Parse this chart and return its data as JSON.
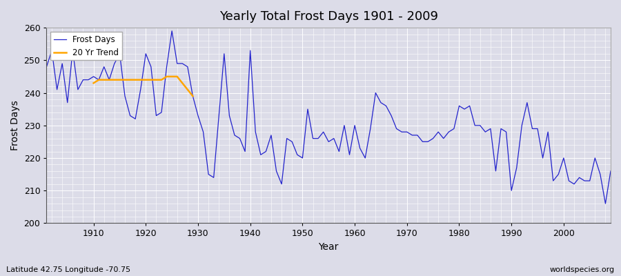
{
  "title": "Yearly Total Frost Days 1901 - 2009",
  "xlabel": "Year",
  "ylabel": "Frost Days",
  "footnote_left": "Latitude 42.75 Longitude -70.75",
  "footnote_right": "worldspecies.org",
  "ylim": [
    200,
    260
  ],
  "xlim": [
    1901,
    2009
  ],
  "background_color": "#dcdce8",
  "grid_color": "#ffffff",
  "line_color": "#2222cc",
  "trend_color": "#ffa500",
  "years": [
    1901,
    1902,
    1903,
    1904,
    1905,
    1906,
    1907,
    1908,
    1909,
    1910,
    1911,
    1912,
    1913,
    1914,
    1915,
    1916,
    1917,
    1918,
    1919,
    1920,
    1921,
    1922,
    1923,
    1924,
    1925,
    1926,
    1927,
    1928,
    1929,
    1930,
    1931,
    1932,
    1933,
    1934,
    1935,
    1936,
    1937,
    1938,
    1939,
    1940,
    1941,
    1942,
    1943,
    1944,
    1945,
    1946,
    1947,
    1948,
    1949,
    1950,
    1951,
    1952,
    1953,
    1954,
    1955,
    1956,
    1957,
    1958,
    1959,
    1960,
    1961,
    1962,
    1963,
    1964,
    1965,
    1966,
    1967,
    1968,
    1969,
    1970,
    1971,
    1972,
    1973,
    1974,
    1975,
    1976,
    1977,
    1978,
    1979,
    1980,
    1981,
    1982,
    1983,
    1984,
    1985,
    1986,
    1987,
    1988,
    1989,
    1990,
    1991,
    1992,
    1993,
    1994,
    1995,
    1996,
    1997,
    1998,
    1999,
    2000,
    2001,
    2002,
    2003,
    2004,
    2005,
    2006,
    2007,
    2008,
    2009
  ],
  "frost_days": [
    248,
    253,
    241,
    249,
    237,
    253,
    241,
    244,
    244,
    245,
    244,
    248,
    244,
    249,
    252,
    239,
    233,
    232,
    241,
    252,
    248,
    233,
    234,
    248,
    259,
    249,
    249,
    248,
    239,
    233,
    228,
    215,
    214,
    233,
    252,
    233,
    227,
    226,
    222,
    253,
    228,
    221,
    222,
    227,
    216,
    212,
    226,
    225,
    221,
    220,
    235,
    226,
    226,
    228,
    225,
    226,
    222,
    230,
    221,
    230,
    223,
    220,
    229,
    240,
    237,
    236,
    233,
    229,
    228,
    228,
    227,
    227,
    225,
    225,
    226,
    228,
    226,
    228,
    229,
    236,
    235,
    236,
    230,
    230,
    228,
    229,
    216,
    229,
    228,
    210,
    217,
    230,
    237,
    229,
    229,
    220,
    228,
    213,
    215,
    220,
    213,
    212,
    214,
    213,
    213,
    220,
    215,
    206,
    216
  ],
  "trend_years": [
    1910,
    1911,
    1912,
    1913,
    1914,
    1915,
    1916,
    1917,
    1918,
    1919,
    1920,
    1921,
    1922,
    1923,
    1924,
    1925,
    1926,
    1927,
    1928,
    1929
  ],
  "trend_values": [
    243,
    244,
    244,
    244,
    244,
    244,
    244,
    244,
    244,
    244,
    244,
    244,
    244,
    244,
    245,
    245,
    245,
    243,
    241,
    239
  ]
}
